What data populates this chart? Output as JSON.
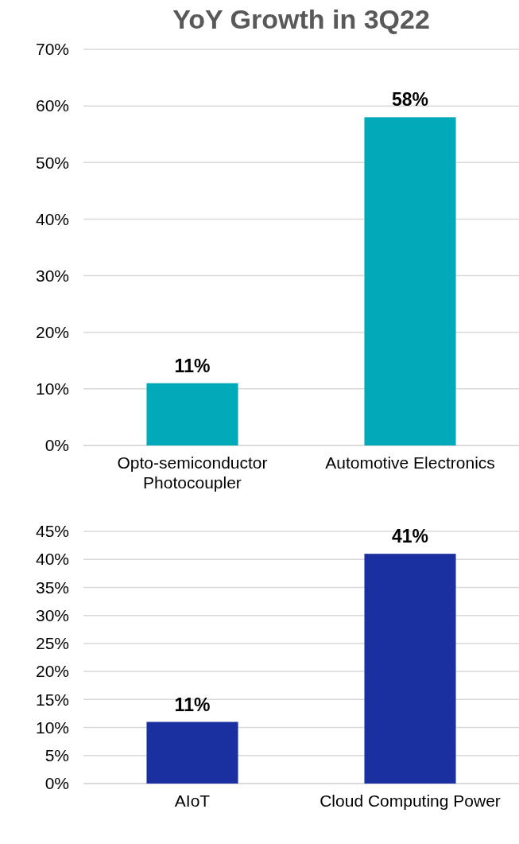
{
  "chart_data": [
    {
      "type": "bar",
      "title": "YoY Growth in 3Q22",
      "categories": [
        "Opto-semiconductor Photocoupler",
        "Automotive Electronics"
      ],
      "values": [
        11,
        58
      ],
      "colors": [
        "#00aab8",
        "#00aab8"
      ],
      "ylim": [
        0,
        70
      ],
      "yticks": [
        {
          "value": 0,
          "label": "0%"
        },
        {
          "value": 10,
          "label": "10%"
        },
        {
          "value": 20,
          "label": "20%"
        },
        {
          "value": 30,
          "label": "30%"
        },
        {
          "value": 40,
          "label": "40%"
        },
        {
          "value": 50,
          "label": "50%"
        },
        {
          "value": 60,
          "label": "60%"
        },
        {
          "value": 70,
          "label": "70%"
        }
      ],
      "grid": "y",
      "value_labels": [
        "11%",
        "58%"
      ]
    },
    {
      "type": "bar",
      "categories": [
        "AIoT",
        "Cloud Computing Power"
      ],
      "values": [
        11,
        41
      ],
      "colors": [
        "#1a2fa0",
        "#1a2fa0"
      ],
      "ylim": [
        0,
        45
      ],
      "yticks": [
        {
          "value": 0,
          "label": "0%"
        },
        {
          "value": 5,
          "label": "5%"
        },
        {
          "value": 10,
          "label": "10%"
        },
        {
          "value": 15,
          "label": "15%"
        },
        {
          "value": 20,
          "label": "20%"
        },
        {
          "value": 25,
          "label": "25%"
        },
        {
          "value": 30,
          "label": "30%"
        },
        {
          "value": 35,
          "label": "35%"
        },
        {
          "value": 40,
          "label": "40%"
        },
        {
          "value": 45,
          "label": "45%"
        }
      ],
      "grid": "y",
      "value_labels": [
        "11%",
        "41%"
      ]
    }
  ]
}
